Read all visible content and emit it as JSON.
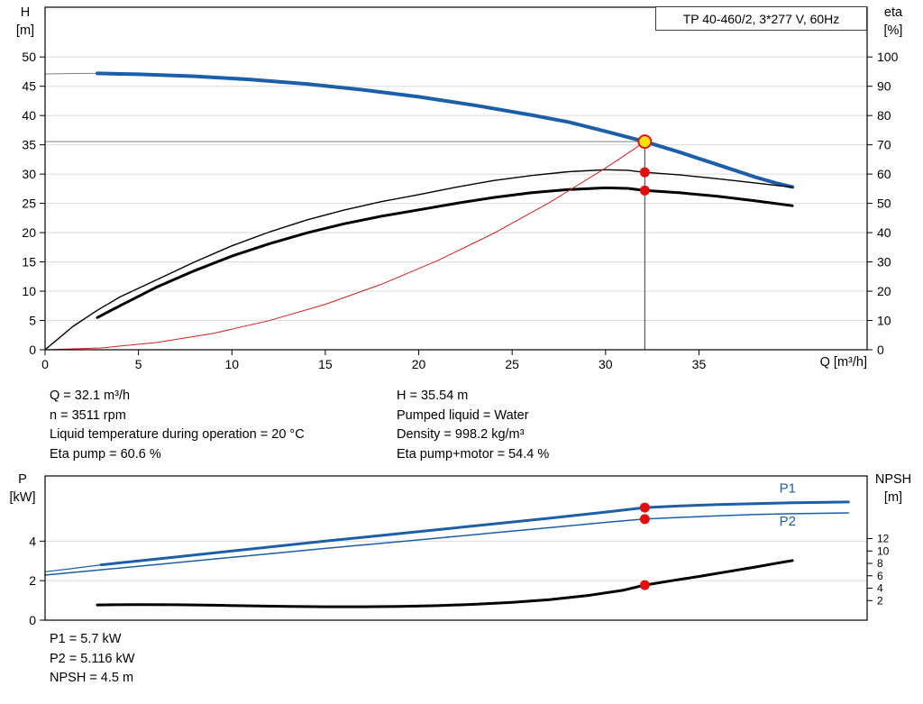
{
  "info": {
    "left": [
      "Q = 32.1 m³/h",
      "n = 3511 rpm",
      "Liquid temperature during operation = 20 °C",
      "Eta pump = 60.6 %"
    ],
    "right": [
      "H = 35.54 m",
      "Pumped liquid = Water",
      "Density = 998.2 kg/m³",
      "Eta pump+motor = 54.4 %"
    ]
  },
  "results": [
    "P1 = 5.7 kW",
    "P2 = 5.116 kW",
    "NPSH = 4.5 m"
  ],
  "colors": {
    "curve_blue": "#1c5fa8",
    "curve_black": "#000000",
    "system_red": "#cc2020",
    "marker_red": "#e01010",
    "duty_yellow": "#ffe000"
  },
  "chart_data": [
    {
      "type": "line",
      "title": "TP 40-460/2, 3*277 V, 60Hz",
      "x": {
        "min": 0,
        "max": 44,
        "ticks": [
          0,
          5,
          10,
          15,
          20,
          25,
          30,
          35
        ],
        "label": "Q [m³/h]"
      },
      "y_left": {
        "min": 0,
        "max": 58.5,
        "ticks": [
          0,
          5,
          10,
          15,
          20,
          25,
          30,
          35,
          40,
          45,
          50
        ],
        "label": "H",
        "unit": "[m]",
        "grid": true
      },
      "y_right": {
        "min": 0,
        "max": 117,
        "ticks": [
          0,
          10,
          20,
          30,
          40,
          50,
          60,
          70,
          80,
          90,
          100
        ],
        "label": "eta",
        "unit": "[%]"
      },
      "crosshair": {
        "q": 32.1,
        "value": 35.54,
        "axis": "y_left"
      },
      "series": [
        {
          "name": "head-curve-low-flow",
          "axis": "y_left",
          "color": "#808080",
          "width": 1,
          "points": [
            [
              0,
              47.1
            ],
            [
              1.5,
              47.18
            ],
            [
              2.8,
              47.2
            ]
          ]
        },
        {
          "name": "head-curve",
          "axis": "y_left",
          "color": "#1c5fa8",
          "width": 4,
          "points": [
            [
              2.8,
              47.2
            ],
            [
              5,
              47.05
            ],
            [
              8,
              46.7
            ],
            [
              11,
              46.15
            ],
            [
              14,
              45.4
            ],
            [
              17,
              44.4
            ],
            [
              20,
              43.2
            ],
            [
              23,
              41.75
            ],
            [
              26,
              40.1
            ],
            [
              28,
              38.9
            ],
            [
              30,
              37.3
            ],
            [
              32.1,
              35.54
            ],
            [
              34,
              33.7
            ],
            [
              36,
              31.6
            ],
            [
              38,
              29.5
            ],
            [
              39.2,
              28.4
            ],
            [
              40,
              27.8
            ]
          ]
        },
        {
          "name": "eta-pump-curve",
          "axis": "y_right",
          "color": "#000000",
          "width": 1.4,
          "points": [
            [
              0,
              0
            ],
            [
              1.5,
              8
            ],
            [
              2.8,
              13.5
            ],
            [
              4,
              18
            ],
            [
              6,
              24
            ],
            [
              8,
              30
            ],
            [
              10,
              35.5
            ],
            [
              12,
              40.2
            ],
            [
              14,
              44.3
            ],
            [
              16,
              47.7
            ],
            [
              18,
              50.6
            ],
            [
              20,
              53
            ],
            [
              22,
              55.5
            ],
            [
              24,
              57.8
            ],
            [
              26,
              59.5
            ],
            [
              28,
              60.8
            ],
            [
              30,
              61.5
            ],
            [
              31.2,
              61.3
            ],
            [
              32.1,
              60.6
            ],
            [
              34,
              59.7
            ],
            [
              36,
              58.4
            ],
            [
              38,
              57
            ],
            [
              40,
              55.5
            ]
          ]
        },
        {
          "name": "eta-pump-motor-curve",
          "axis": "y_right",
          "color": "#000000",
          "width": 3,
          "points": [
            [
              2.8,
              11
            ],
            [
              4,
              15
            ],
            [
              6,
              21.5
            ],
            [
              8,
              27
            ],
            [
              10,
              32
            ],
            [
              12,
              36.2
            ],
            [
              14,
              39.9
            ],
            [
              16,
              43
            ],
            [
              18,
              45.6
            ],
            [
              20,
              47.8
            ],
            [
              22,
              50
            ],
            [
              24,
              52
            ],
            [
              26,
              53.6
            ],
            [
              28,
              54.7
            ],
            [
              30,
              55.3
            ],
            [
              31.2,
              55.1
            ],
            [
              32.1,
              54.4
            ],
            [
              34,
              53.6
            ],
            [
              36,
              52.4
            ],
            [
              38,
              50.9
            ],
            [
              40,
              49.2
            ]
          ]
        },
        {
          "name": "system-curve",
          "axis": "y_left",
          "color": "#cc2020",
          "width": 1,
          "points": [
            [
              0,
              0
            ],
            [
              3,
              0.31
            ],
            [
              6,
              1.24
            ],
            [
              9,
              2.79
            ],
            [
              12,
              4.97
            ],
            [
              15,
              7.76
            ],
            [
              18,
              11.17
            ],
            [
              21,
              15.21
            ],
            [
              24,
              19.86
            ],
            [
              27,
              25.14
            ],
            [
              30,
              31.03
            ],
            [
              31.5,
              34.21
            ],
            [
              32.1,
              35.54
            ]
          ]
        }
      ],
      "markers": [
        {
          "name": "duty-point",
          "axis": "y_left",
          "q": 32.1,
          "value": 35.54,
          "r": 7,
          "fill": "#ffe000",
          "stroke": "#e01010",
          "stroke_width": 2,
          "interactable": true
        },
        {
          "name": "eta-pump-marker",
          "axis": "y_right",
          "q": 32.1,
          "value": 60.6,
          "r": 5.5,
          "fill": "#e01010"
        },
        {
          "name": "eta-pump-motor-marker",
          "axis": "y_right",
          "q": 32.1,
          "value": 54.4,
          "r": 5.5,
          "fill": "#e01010"
        }
      ]
    },
    {
      "type": "line",
      "title": "",
      "x": {
        "min": 0,
        "max": 44,
        "ticks": [],
        "label": ""
      },
      "y_left": {
        "min": 0,
        "max": 7.3,
        "ticks": [
          0,
          2,
          4
        ],
        "label": "P",
        "unit": "[kW]",
        "grid": true
      },
      "y_right": {
        "min": -1.16,
        "max": 22.11,
        "ticks": [
          2,
          4,
          6,
          8,
          10,
          12
        ],
        "label": "NPSH",
        "unit": "[m]",
        "small": true
      },
      "series": [
        {
          "name": "p1-curve-low-flow",
          "axis": "y_left",
          "color": "#1c5fa8",
          "width": 1.2,
          "points": [
            [
              0,
              2.45
            ],
            [
              1.5,
              2.62
            ],
            [
              3,
              2.8
            ]
          ]
        },
        {
          "name": "p1-curve",
          "axis": "y_left",
          "color": "#1c5fa8",
          "width": 3,
          "points": [
            [
              3,
              2.8
            ],
            [
              6,
              3.1
            ],
            [
              9,
              3.4
            ],
            [
              12,
              3.7
            ],
            [
              15,
              4.0
            ],
            [
              18,
              4.29
            ],
            [
              21,
              4.58
            ],
            [
              24,
              4.87
            ],
            [
              27,
              5.16
            ],
            [
              30,
              5.47
            ],
            [
              32.1,
              5.7
            ],
            [
              34,
              5.78
            ],
            [
              36,
              5.85
            ],
            [
              38,
              5.9
            ],
            [
              40,
              5.94
            ],
            [
              43,
              5.98
            ]
          ]
        },
        {
          "name": "p2-curve",
          "axis": "y_left",
          "color": "#1c5fa8",
          "width": 1.5,
          "points": [
            [
              0,
              2.28
            ],
            [
              3,
              2.55
            ],
            [
              6,
              2.82
            ],
            [
              9,
              3.09
            ],
            [
              12,
              3.36
            ],
            [
              15,
              3.63
            ],
            [
              18,
              3.89
            ],
            [
              21,
              4.15
            ],
            [
              24,
              4.42
            ],
            [
              27,
              4.68
            ],
            [
              30,
              4.95
            ],
            [
              32.1,
              5.12
            ],
            [
              34,
              5.2
            ],
            [
              36,
              5.28
            ],
            [
              38,
              5.35
            ],
            [
              40,
              5.39
            ],
            [
              43,
              5.43
            ]
          ]
        },
        {
          "name": "npsh-curve",
          "axis": "y_right",
          "color": "#000000",
          "width": 3,
          "points": [
            [
              2.8,
              1.3
            ],
            [
              5,
              1.35
            ],
            [
              7,
              1.32
            ],
            [
              9,
              1.25
            ],
            [
              11,
              1.15
            ],
            [
              13,
              1.06
            ],
            [
              15,
              1.0
            ],
            [
              17,
              1.0
            ],
            [
              19,
              1.06
            ],
            [
              21,
              1.18
            ],
            [
              23,
              1.4
            ],
            [
              25,
              1.72
            ],
            [
              27,
              2.15
            ],
            [
              29,
              2.8
            ],
            [
              31,
              3.7
            ],
            [
              32.1,
              4.5
            ],
            [
              33.5,
              5.2
            ],
            [
              35,
              5.9
            ],
            [
              36.5,
              6.65
            ],
            [
              38,
              7.4
            ],
            [
              39.2,
              8.05
            ],
            [
              40,
              8.45
            ]
          ]
        }
      ],
      "markers": [
        {
          "name": "p1-marker",
          "axis": "y_left",
          "q": 32.1,
          "value": 5.7,
          "r": 5.5,
          "fill": "#e01010"
        },
        {
          "name": "p2-marker",
          "axis": "y_left",
          "q": 32.1,
          "value": 5.116,
          "r": 5.5,
          "fill": "#e01010"
        },
        {
          "name": "npsh-marker",
          "axis": "y_right",
          "q": 32.1,
          "value": 4.5,
          "r": 5.5,
          "fill": "#e01010"
        }
      ],
      "labels": [
        {
          "name": "p1-curve-label",
          "text": "P1",
          "axis": "y_left",
          "q": 39.3,
          "value": 6.45
        },
        {
          "name": "p2-curve-label",
          "text": "P2",
          "axis": "y_left",
          "q": 39.3,
          "value": 4.78
        }
      ]
    }
  ]
}
